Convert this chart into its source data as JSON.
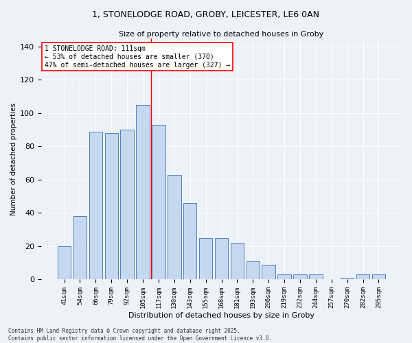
{
  "title_line1": "1, STONELODGE ROAD, GROBY, LEICESTER, LE6 0AN",
  "title_line2": "Size of property relative to detached houses in Groby",
  "xlabel": "Distribution of detached houses by size in Groby",
  "ylabel": "Number of detached properties",
  "categories": [
    "41sqm",
    "54sqm",
    "66sqm",
    "79sqm",
    "92sqm",
    "105sqm",
    "117sqm",
    "130sqm",
    "143sqm",
    "155sqm",
    "168sqm",
    "181sqm",
    "193sqm",
    "206sqm",
    "219sqm",
    "232sqm",
    "244sqm",
    "257sqm",
    "270sqm",
    "282sqm",
    "295sqm"
  ],
  "values": [
    20,
    38,
    89,
    88,
    90,
    105,
    93,
    63,
    46,
    25,
    25,
    22,
    11,
    9,
    3,
    3,
    3,
    0,
    1,
    3,
    3
  ],
  "bar_color": "#c5d8f0",
  "bar_edge_color": "#4f81bd",
  "vline_x": 5.5,
  "vline_color": "red",
  "annotation_text": "1 STONELODGE ROAD: 111sqm\n← 53% of detached houses are smaller (370)\n47% of semi-detached houses are larger (327) →",
  "annotation_box_color": "red",
  "annotation_text_color": "black",
  "ylim": [
    0,
    145
  ],
  "yticks": [
    0,
    20,
    40,
    60,
    80,
    100,
    120,
    140
  ],
  "background_color": "#edf1f9",
  "grid_color": "white",
  "footer_line1": "Contains HM Land Registry data © Crown copyright and database right 2025.",
  "footer_line2": "Contains public sector information licensed under the Open Government Licence v3.0.",
  "bar_width": 0.85
}
